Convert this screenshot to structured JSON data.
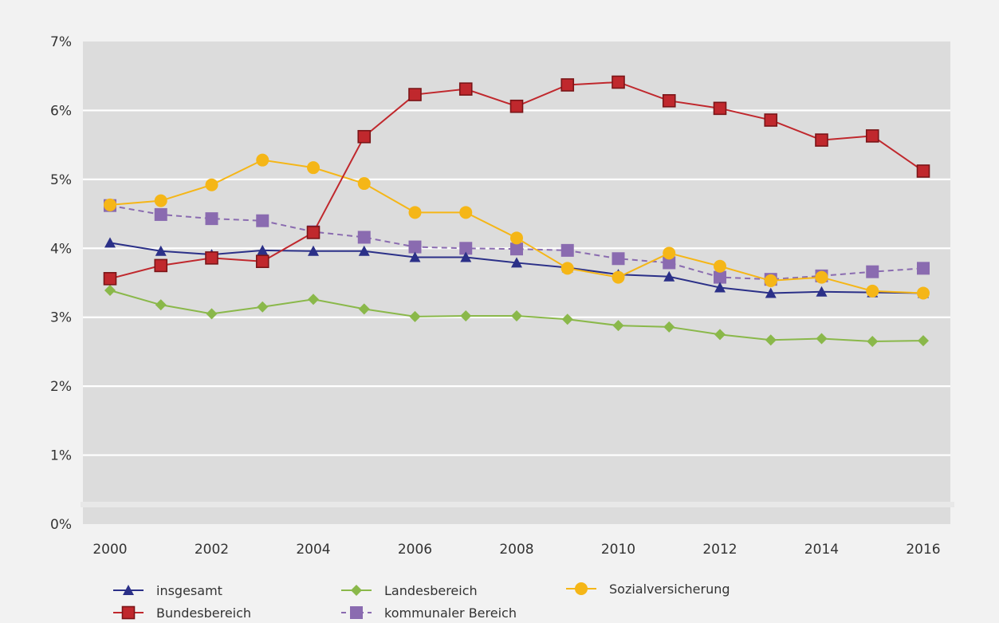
{
  "chart_data": {
    "type": "line",
    "title": "",
    "xlabel": "",
    "ylabel": "",
    "x": [
      2000,
      2001,
      2002,
      2003,
      2004,
      2005,
      2006,
      2007,
      2008,
      2009,
      2010,
      2011,
      2012,
      2013,
      2014,
      2015,
      2016
    ],
    "x_tick_labels": [
      "2000",
      "2002",
      "2004",
      "2006",
      "2008",
      "2010",
      "2012",
      "2014",
      "2016"
    ],
    "y_tick_labels": [
      "0%",
      "1%",
      "2%",
      "3%",
      "4%",
      "5%",
      "6%",
      "7%"
    ],
    "ylim": [
      0,
      7
    ],
    "y_unit": "%",
    "grid": "horizontal",
    "legend_position": "bottom",
    "series": [
      {
        "name": "insgesamt",
        "color": "#2b3088",
        "marker": "triangle",
        "dash": "solid",
        "values": [
          4.08,
          3.96,
          3.91,
          3.97,
          3.96,
          3.96,
          3.87,
          3.87,
          3.79,
          3.72,
          3.62,
          3.59,
          3.43,
          3.35,
          3.37,
          3.36,
          3.35
        ]
      },
      {
        "name": "Bundesbereich",
        "color": "#c0282d",
        "marker": "square",
        "dash": "solid",
        "values": [
          3.56,
          3.75,
          3.86,
          3.81,
          4.23,
          5.62,
          6.23,
          6.31,
          6.06,
          6.37,
          6.41,
          6.14,
          6.03,
          5.86,
          5.57,
          5.63,
          5.12
        ]
      },
      {
        "name": "Landesbereich",
        "color": "#8ab84a",
        "marker": "diamond",
        "dash": "solid",
        "values": [
          3.39,
          3.18,
          3.05,
          3.15,
          3.26,
          3.12,
          3.01,
          3.02,
          3.02,
          2.97,
          2.88,
          2.86,
          2.75,
          2.67,
          2.69,
          2.65,
          2.66
        ]
      },
      {
        "name": "kommunaler Bereich",
        "color": "#8a6bb0",
        "marker": "square",
        "dash": "dashed",
        "values": [
          4.62,
          4.49,
          4.43,
          4.4,
          4.24,
          4.16,
          4.02,
          4.0,
          3.99,
          3.97,
          3.85,
          3.79,
          3.58,
          3.55,
          3.6,
          3.66,
          3.71
        ]
      },
      {
        "name": "Sozialversicherung",
        "color": "#f5b617",
        "marker": "circle",
        "dash": "solid",
        "values": [
          4.63,
          4.69,
          4.92,
          5.28,
          5.17,
          4.94,
          4.52,
          4.52,
          4.15,
          3.71,
          3.58,
          3.93,
          3.74,
          3.53,
          3.58,
          3.38,
          3.35
        ]
      }
    ]
  }
}
